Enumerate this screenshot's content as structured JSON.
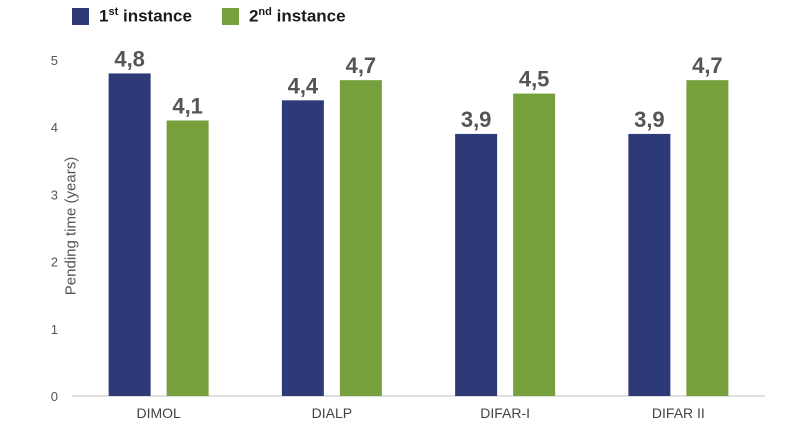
{
  "legend": {
    "s1_main": "1",
    "s1_sup": "st",
    "s1_rest": " instance",
    "s2_main": "2",
    "s2_sup": "nd",
    "s2_rest": " instance"
  },
  "chart_data": {
    "type": "bar",
    "categories": [
      "DIMOL",
      "DIALP",
      "DIFAR-I",
      "DIFAR II"
    ],
    "series": [
      {
        "name": "1st instance",
        "color": "#2e3a78",
        "values": [
          4.8,
          4.4,
          3.9,
          3.9
        ],
        "labels": [
          "4,8",
          "4,4",
          "3,9",
          "3,9"
        ]
      },
      {
        "name": "2nd instance",
        "color": "#76a03c",
        "values": [
          4.1,
          4.7,
          4.5,
          4.7
        ],
        "labels": [
          "4,1",
          "4,7",
          "4,5",
          "4,7"
        ]
      }
    ],
    "title": "",
    "xlabel": "",
    "ylabel": "Pending time (years)",
    "ylim": [
      0,
      5
    ],
    "yticks": [
      0,
      1,
      2,
      3,
      4,
      5
    ],
    "grid": false,
    "legend_position": "top-left"
  }
}
